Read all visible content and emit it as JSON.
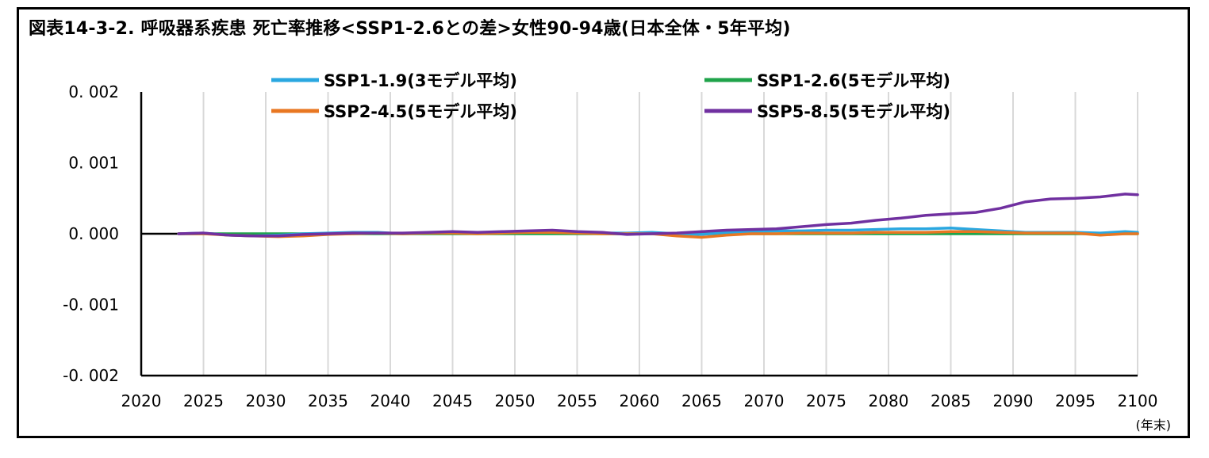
{
  "chart_data": {
    "type": "line",
    "title": "図表14-3-2. 呼吸器系疾患 死亡率推移<SSP1-2.6との差>女性90-94歳(日本全体・5年平均)",
    "xlabel": "(年末)",
    "ylabel": "",
    "xlim": [
      2020,
      2100
    ],
    "ylim": [
      -0.002,
      0.002
    ],
    "x_ticks": [
      "2020",
      "2025",
      "2030",
      "2035",
      "2040",
      "2045",
      "2050",
      "2055",
      "2060",
      "2065",
      "2070",
      "2075",
      "2080",
      "2085",
      "2090",
      "2095",
      "2100"
    ],
    "y_ticks": [
      "0.002",
      "0.001",
      "0.000",
      "-0.001",
      "-0.002"
    ],
    "grid": "vertical",
    "legend_position": "top",
    "x": [
      2023,
      2025,
      2027,
      2029,
      2031,
      2033,
      2035,
      2037,
      2039,
      2041,
      2043,
      2045,
      2047,
      2049,
      2051,
      2053,
      2055,
      2057,
      2059,
      2061,
      2063,
      2065,
      2067,
      2069,
      2071,
      2073,
      2075,
      2077,
      2079,
      2081,
      2083,
      2085,
      2087,
      2089,
      2091,
      2093,
      2095,
      2097,
      2099,
      2100
    ],
    "series": [
      {
        "name": "SSP1-1.9(3モデル平均)",
        "color": "#2aa7e0",
        "values": [
          0.0,
          1e-05,
          -2e-05,
          -3e-05,
          -2e-05,
          0.0,
          1e-05,
          2e-05,
          2e-05,
          0.0,
          1e-05,
          2e-05,
          1e-05,
          2e-05,
          2e-05,
          3e-05,
          2e-05,
          1e-05,
          1e-05,
          2e-05,
          0.0,
          -1e-05,
          2e-05,
          3e-05,
          4e-05,
          4e-05,
          5e-05,
          5e-05,
          6e-05,
          7e-05,
          7e-05,
          8e-05,
          6e-05,
          4e-05,
          2e-05,
          2e-05,
          2e-05,
          1e-05,
          3e-05,
          2e-05
        ]
      },
      {
        "name": "SSP1-2.6(5モデル平均)",
        "color": "#1fa34a",
        "values": [
          0.0,
          0.0,
          0.0,
          0.0,
          0.0,
          0.0,
          0.0,
          0.0,
          0.0,
          0.0,
          0.0,
          0.0,
          0.0,
          0.0,
          0.0,
          0.0,
          0.0,
          0.0,
          0.0,
          0.0,
          0.0,
          0.0,
          0.0,
          0.0,
          0.0,
          0.0,
          0.0,
          0.0,
          0.0,
          0.0,
          0.0,
          0.0,
          0.0,
          0.0,
          0.0,
          0.0,
          0.0,
          0.0,
          0.0,
          0.0
        ]
      },
      {
        "name": "SSP2-4.5(5モデル平均)",
        "color": "#e87722",
        "values": [
          0.0,
          0.0,
          -2e-05,
          -3e-05,
          -4e-05,
          -3e-05,
          -1e-05,
          0.0,
          1e-05,
          0.0,
          1e-05,
          1e-05,
          0.0,
          1e-05,
          2e-05,
          2e-05,
          1e-05,
          0.0,
          0.0,
          0.0,
          -3e-05,
          -5e-05,
          -2e-05,
          0.0,
          0.0,
          1e-05,
          1e-05,
          1e-05,
          2e-05,
          2e-05,
          2e-05,
          3e-05,
          3e-05,
          2e-05,
          1e-05,
          1e-05,
          1e-05,
          -2e-05,
          0.0,
          0.0
        ]
      },
      {
        "name": "SSP5-8.5(5モデル平均)",
        "color": "#7030a0",
        "values": [
          0.0,
          1e-05,
          -2e-05,
          -3e-05,
          -3e-05,
          -1e-05,
          0.0,
          1e-05,
          1e-05,
          1e-05,
          2e-05,
          3e-05,
          2e-05,
          3e-05,
          4e-05,
          5e-05,
          3e-05,
          2e-05,
          -1e-05,
          0.0,
          1e-05,
          3e-05,
          5e-05,
          6e-05,
          7e-05,
          0.0001,
          0.00013,
          0.00015,
          0.00019,
          0.00022,
          0.00026,
          0.00028,
          0.0003,
          0.00036,
          0.00045,
          0.00049,
          0.0005,
          0.00052,
          0.00056,
          0.00055
        ]
      }
    ]
  }
}
